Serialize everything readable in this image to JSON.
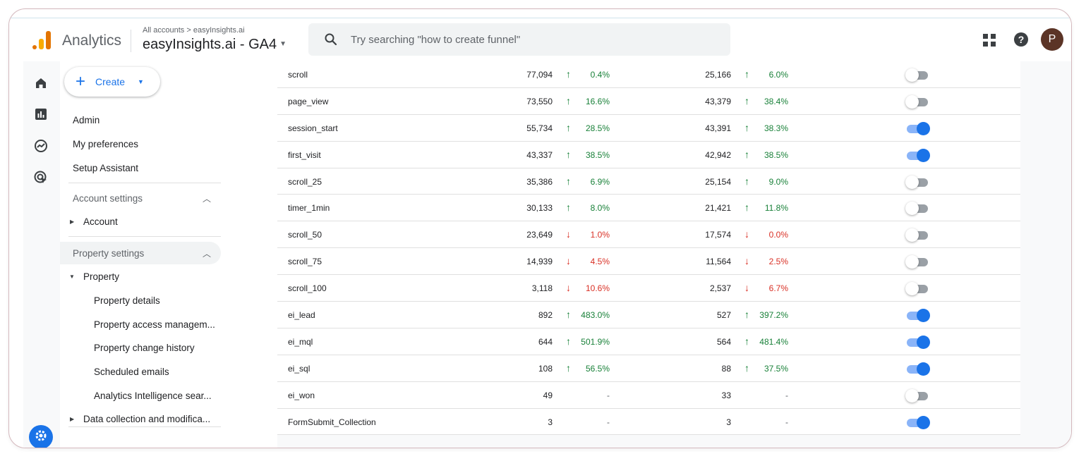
{
  "header": {
    "app_name": "Analytics",
    "breadcrumb": "All accounts > easyInsights.ai",
    "property": "easyInsights.ai - GA4",
    "search_placeholder": "Try searching \"how to create funnel\"",
    "avatar_letter": "P",
    "help_glyph": "?"
  },
  "sidenav": {
    "create_label": "Create",
    "admin": "Admin",
    "preferences": "My preferences",
    "setup_assistant": "Setup Assistant",
    "account_settings": "Account settings",
    "account": "Account",
    "property_settings": "Property settings",
    "property": "Property",
    "property_items": [
      "Property details",
      "Property access managem...",
      "Property change history",
      "Scheduled emails",
      "Analytics Intelligence sear..."
    ],
    "data_collection": "Data collection and modifica..."
  },
  "table": {
    "rows": [
      {
        "name": "scroll",
        "count1": "77,094",
        "dir1": "up",
        "pct1": "0.4%",
        "count2": "25,166",
        "dir2": "up",
        "pct2": "6.0%",
        "key_event": false
      },
      {
        "name": "page_view",
        "count1": "73,550",
        "dir1": "up",
        "pct1": "16.6%",
        "count2": "43,379",
        "dir2": "up",
        "pct2": "38.4%",
        "key_event": false
      },
      {
        "name": "session_start",
        "count1": "55,734",
        "dir1": "up",
        "pct1": "28.5%",
        "count2": "43,391",
        "dir2": "up",
        "pct2": "38.3%",
        "key_event": true
      },
      {
        "name": "first_visit",
        "count1": "43,337",
        "dir1": "up",
        "pct1": "38.5%",
        "count2": "42,942",
        "dir2": "up",
        "pct2": "38.5%",
        "key_event": true
      },
      {
        "name": "scroll_25",
        "count1": "35,386",
        "dir1": "up",
        "pct1": "6.9%",
        "count2": "25,154",
        "dir2": "up",
        "pct2": "9.0%",
        "key_event": false
      },
      {
        "name": "timer_1min",
        "count1": "30,133",
        "dir1": "up",
        "pct1": "8.0%",
        "count2": "21,421",
        "dir2": "up",
        "pct2": "11.8%",
        "key_event": false
      },
      {
        "name": "scroll_50",
        "count1": "23,649",
        "dir1": "down",
        "pct1": "1.0%",
        "count2": "17,574",
        "dir2": "down",
        "pct2": "0.0%",
        "key_event": false
      },
      {
        "name": "scroll_75",
        "count1": "14,939",
        "dir1": "down",
        "pct1": "4.5%",
        "count2": "11,564",
        "dir2": "down",
        "pct2": "2.5%",
        "key_event": false
      },
      {
        "name": "scroll_100",
        "count1": "3,118",
        "dir1": "down",
        "pct1": "10.6%",
        "count2": "2,537",
        "dir2": "down",
        "pct2": "6.7%",
        "key_event": false
      },
      {
        "name": "ei_lead",
        "count1": "892",
        "dir1": "up",
        "pct1": "483.0%",
        "count2": "527",
        "dir2": "up",
        "pct2": "397.2%",
        "key_event": true
      },
      {
        "name": "ei_mql",
        "count1": "644",
        "dir1": "up",
        "pct1": "501.9%",
        "count2": "564",
        "dir2": "up",
        "pct2": "481.4%",
        "key_event": true
      },
      {
        "name": "ei_sql",
        "count1": "108",
        "dir1": "up",
        "pct1": "56.5%",
        "count2": "88",
        "dir2": "up",
        "pct2": "37.5%",
        "key_event": true
      },
      {
        "name": "ei_won",
        "count1": "49",
        "dir1": "none",
        "pct1": "-",
        "count2": "33",
        "dir2": "none",
        "pct2": "-",
        "key_event": false
      },
      {
        "name": "FormSubmit_Collection",
        "count1": "3",
        "dir1": "none",
        "pct1": "-",
        "count2": "3",
        "dir2": "none",
        "pct2": "-",
        "key_event": true
      }
    ]
  },
  "colors": {
    "accent": "#1a73e8",
    "up": "#188038",
    "down": "#d93025",
    "logo_orange": "#e37400",
    "logo_yellow": "#f9ab00"
  }
}
